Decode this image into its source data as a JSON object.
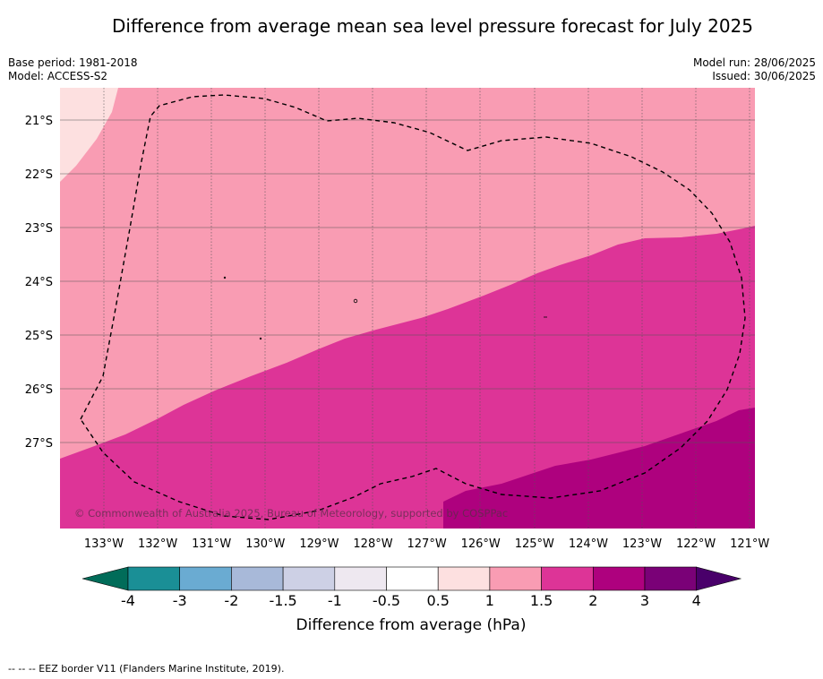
{
  "title": "Difference from average mean sea level pressure forecast for July 2025",
  "base_period": "Base period: 1981-2018",
  "model": "Model: ACCESS-S2",
  "model_run": "Model run: 28/06/2025",
  "issued": "Issued: 30/06/2025",
  "copyright": "© Commonwealth of Australia 2025, Bureau of Meteorology, supported by COSPPac",
  "footer": "-- -- -- EEZ border V11 (Flanders Marine Institute, 2019).",
  "lat_labels": [
    "21°S",
    "22°S",
    "23°S",
    "24°S",
    "25°S",
    "26°S",
    "27°S"
  ],
  "lon_labels": [
    "133°W",
    "132°W",
    "131°W",
    "130°W",
    "129°W",
    "128°W",
    "127°W",
    "126°W",
    "125°W",
    "124°W",
    "123°W",
    "122°W",
    "121°W"
  ],
  "colorbar": {
    "label": "Difference from average (hPa)",
    "ticks": [
      "-4",
      "-3",
      "-2",
      "-1.5",
      "-1",
      "-0.5",
      "0.5",
      "1",
      "1.5",
      "2",
      "3",
      "4"
    ],
    "colors": [
      "#1a8f96",
      "#6aabd2",
      "#a8b9d9",
      "#cdd0e5",
      "#eee8f0",
      "#ffffff",
      "#fde0e0",
      "#f99cb3",
      "#dd3497",
      "#ae017e",
      "#7a0177"
    ],
    "under_color": "#016c59",
    "over_color": "#49006a"
  },
  "map_colors": {
    "0.5-1": "#fde0e0",
    "1-1.5": "#f99cb3",
    "1.5-2": "#dd3497",
    "2-3": "#ae017e"
  }
}
